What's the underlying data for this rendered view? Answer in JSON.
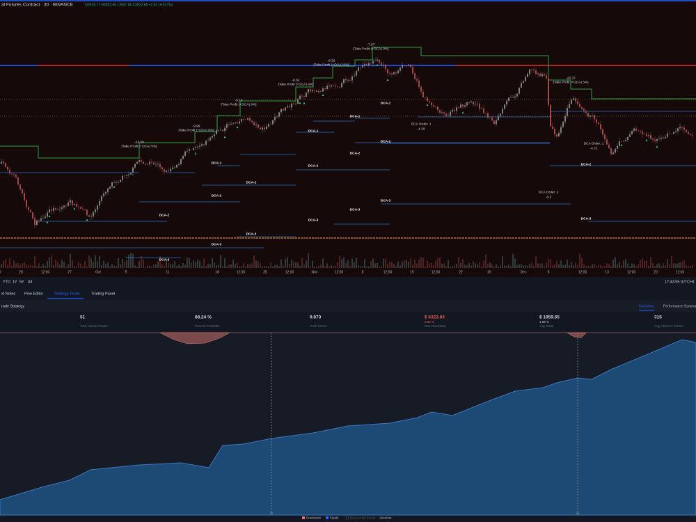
{
  "header": {
    "symbol": "al Futures Contract · 30 · BINANCE",
    "ohlc": "O3919.77 H3922.65 L3907.86 C3922.65 +2.87 (+0.07%)"
  },
  "chart": {
    "annotations": [
      "-24.69",
      "[Take Profit (+DCA) 5%]",
      "-9.99",
      "[Take Profit (+DCA) 8%]",
      "-9.14",
      "[Take Profit (+DCA) 9%]",
      "-8.82",
      "[Take Profit (+DCA) 9%]",
      "-8.32",
      "[Take Profit (+DCA) 9%]",
      "-7.97",
      "[Take Profit (+DCA) 9%]",
      "-20.37",
      "[Take Profit (+DCA) 5%]",
      "DCA Order: 1",
      "-4.39",
      "DCA Order: 2",
      "-8.3",
      "DCA Order: 1",
      "-4.72"
    ],
    "dca_labels": [
      "DCA-2",
      "DCA-3",
      "DCA-1",
      "DCA-2",
      "DCA-3",
      "DCA-2",
      "DCA-3",
      "DCA-1",
      "DCA-2",
      "DCA-3",
      "DCA-1",
      "DCA-2",
      "DCA-3",
      "DCA-1",
      "DCA-2",
      "DCA-3",
      "DCA-2",
      "DCA-3"
    ],
    "time_axis": [
      "0",
      "20",
      "12:00",
      "27",
      "Oct",
      "5",
      "11",
      "18",
      "12:00",
      "25",
      "12:00",
      "Nov",
      "12:00",
      "8",
      "12:00",
      "15",
      "12:00",
      "22",
      "26",
      "Dec",
      "6",
      "12:00",
      "13",
      "12:00",
      "20",
      "12:00"
    ]
  },
  "toolbar": {
    "ranges": [
      "YTD",
      "1Y",
      "5Y",
      "All"
    ],
    "clock": "17:43:55 (UTC+8"
  },
  "tabs": [
    "xt Notes",
    "Pine Editor",
    "Strategy Tester",
    "Trading Panel"
  ],
  "strategy": {
    "name": "rade Strategy",
    "views": [
      "Overview",
      "Performance Summa"
    ],
    "stats": [
      {
        "value": "51",
        "label": "Total Closed Trades"
      },
      {
        "value": "88.24 %",
        "label": "Percent Profitable"
      },
      {
        "value": "9.873",
        "label": "Profit Factor"
      },
      {
        "value": "$ 6323.83",
        "sub": "6.82 %",
        "label": "Max Drawdown"
      },
      {
        "value": "$ 1959.55",
        "sub": "1.96 %",
        "label": "Avg Trade"
      },
      {
        "value": "315",
        "label": "Avg # Bars in Trades"
      }
    ],
    "trade_axis": [
      "20",
      "45"
    ],
    "legend": [
      "Drawdown",
      "Equity",
      "Buy & Hold Equity",
      "Absolute"
    ]
  }
}
